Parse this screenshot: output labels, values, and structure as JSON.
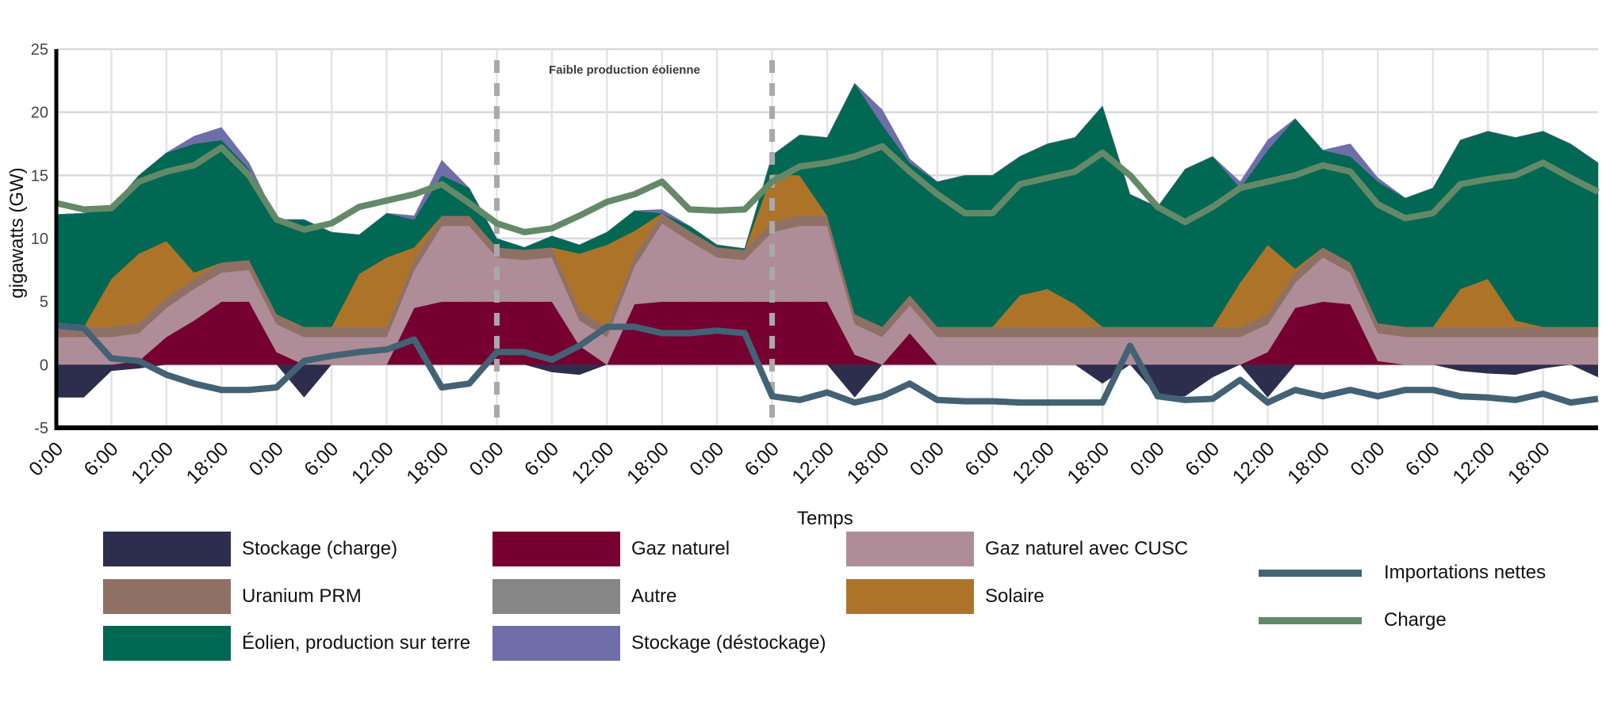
{
  "chart_data": {
    "type": "area",
    "title": "",
    "xlabel": "Temps",
    "ylabel": "gigawatts (GW)",
    "ylim": [
      -5,
      25
    ],
    "yticks": [
      -5,
      0,
      5,
      10,
      15,
      20,
      25
    ],
    "x_hours_step": 3,
    "x_range_hours": [
      0,
      168
    ],
    "xtick_labels": [
      "0:00",
      "6:00",
      "12:00",
      "18:00",
      "0:00",
      "6:00",
      "12:00",
      "18:00",
      "0:00",
      "6:00",
      "12:00",
      "18:00",
      "0:00",
      "6:00",
      "12:00",
      "18:00",
      "0:00",
      "6:00",
      "12:00",
      "18:00",
      "0:00",
      "6:00",
      "12:00",
      "18:00",
      "0:00",
      "6:00",
      "12:00",
      "18:00"
    ],
    "grid": true,
    "legend_position": "bottom",
    "annotation": {
      "text": "Faible production éolienne",
      "span_hours": [
        48,
        78
      ]
    },
    "stacked_series": [
      {
        "name": "Gaz naturel",
        "color": "#760030",
        "values": [
          0,
          0,
          0,
          0.3,
          2.2,
          3.5,
          5,
          5,
          1.0,
          0,
          0,
          0,
          0,
          4.5,
          5,
          5,
          5,
          5,
          5,
          1.5,
          0,
          4.8,
          5,
          5,
          5,
          5,
          5,
          5,
          5,
          0.8,
          0,
          2.5,
          0,
          0,
          0,
          0,
          0,
          0,
          0,
          0,
          0,
          0,
          0,
          0,
          1.0,
          4.5,
          5,
          4.8,
          0.3,
          0,
          0,
          0,
          0,
          0,
          0,
          0,
          0
        ]
      },
      {
        "name": "Gaz naturel avec CUSC",
        "color": "#ae8d98",
        "values": [
          2.2,
          2.2,
          2.2,
          2.2,
          2.3,
          2.5,
          2.3,
          2.5,
          2.2,
          2.2,
          2.2,
          2.2,
          2.2,
          3.0,
          6.0,
          6.0,
          3.5,
          3.3,
          3.5,
          2.0,
          2.2,
          3.0,
          6.2,
          4.8,
          3.5,
          3.3,
          5.5,
          6.0,
          6.0,
          2.4,
          2.2,
          2.2,
          2.2,
          2.2,
          2.2,
          2.2,
          2.2,
          2.2,
          2.2,
          2.2,
          2.2,
          2.2,
          2.2,
          2.2,
          2.2,
          2.0,
          3.5,
          2.5,
          2.2,
          2.2,
          2.2,
          2.2,
          2.2,
          2.2,
          2.2,
          2.2,
          2.2
        ]
      },
      {
        "name": "Uranium PRM",
        "color": "#8f7065",
        "values": [
          0.8,
          0.8,
          0.8,
          0.8,
          0.8,
          0.8,
          0.8,
          0.8,
          0.8,
          0.8,
          0.8,
          0.8,
          0.8,
          0.8,
          0.8,
          0.8,
          0.8,
          0.8,
          0.8,
          0.8,
          0.8,
          0.8,
          0.8,
          0.8,
          0.8,
          0.8,
          0.8,
          0.8,
          0.8,
          0.8,
          0.8,
          0.8,
          0.8,
          0.8,
          0.8,
          0.8,
          0.8,
          0.8,
          0.8,
          0.8,
          0.8,
          0.8,
          0.8,
          0.8,
          0.8,
          0.8,
          0.8,
          0.8,
          0.8,
          0.8,
          0.8,
          0.8,
          0.8,
          0.8,
          0.8,
          0.8,
          0.8
        ]
      },
      {
        "name": "Autre",
        "color": "#878787",
        "values": [
          0,
          0,
          0,
          0,
          0,
          0,
          0,
          0,
          0,
          0,
          0,
          0,
          0,
          0,
          0,
          0,
          0,
          0,
          0,
          0,
          0,
          0,
          0,
          0,
          0,
          0,
          0,
          0,
          0,
          0,
          0,
          0,
          0,
          0,
          0,
          0,
          0,
          0,
          0,
          0,
          0,
          0,
          0,
          0,
          0,
          0,
          0,
          0,
          0,
          0,
          0,
          0,
          0,
          0,
          0,
          0,
          0
        ]
      },
      {
        "name": "Solaire",
        "color": "#ad7429",
        "values": [
          0,
          0,
          3.8,
          5.5,
          4.5,
          0.5,
          0,
          0,
          0,
          0,
          0,
          4.2,
          5.5,
          1.0,
          0,
          0,
          0,
          0,
          0,
          4.5,
          6.5,
          2.0,
          0,
          0,
          0,
          0,
          3.8,
          3.2,
          0,
          0,
          0,
          0,
          0,
          0,
          0,
          2.5,
          3.0,
          1.8,
          0,
          0,
          0,
          0,
          0,
          3.5,
          5.5,
          0.3,
          0,
          0,
          0,
          0,
          0,
          3.0,
          3.8,
          0.5,
          0,
          0,
          0
        ]
      },
      {
        "name": "Éolien, production sur terre",
        "color": "#006853",
        "values": [
          8.9,
          9.0,
          5.7,
          6.2,
          7.0,
          10.2,
          9.7,
          7.2,
          7.5,
          8.5,
          7.5,
          3.1,
          3.5,
          2.2,
          3.2,
          2.2,
          0.7,
          0.2,
          0.9,
          0.7,
          1.0,
          1.6,
          0,
          0.4,
          0.2,
          0.1,
          1.5,
          3.2,
          6.2,
          18.3,
          16,
          10.5,
          11.5,
          12,
          12,
          11,
          11.5,
          13.2,
          17.5,
          10.5,
          9.5,
          12.5,
          13.5,
          7.5,
          7.5,
          11.9,
          7.7,
          8.4,
          11.2,
          10.2,
          11,
          11.8,
          11.7,
          14.5,
          15.5,
          14.5,
          13
        ]
      },
      {
        "name": "Stockage (déstockage)",
        "color": "#6f6ea8",
        "values": [
          0,
          0,
          0,
          0,
          0,
          0.6,
          1.0,
          0.5,
          0,
          0,
          0,
          0,
          0,
          0.3,
          1.2,
          0,
          0,
          0,
          0,
          0,
          0,
          0,
          0.3,
          0,
          0,
          0,
          0,
          0,
          0,
          0,
          1.2,
          0.3,
          0,
          0,
          0,
          0,
          0,
          0,
          0,
          0,
          0,
          0,
          0,
          0.5,
          0.8,
          0,
          0,
          1.0,
          0.3,
          0,
          0,
          0,
          0,
          0,
          0,
          0,
          0
        ]
      }
    ],
    "negative_series": [
      {
        "name": "Stockage (charge)",
        "color": "#2d2d4d",
        "values": [
          -2.6,
          -2.6,
          -0.5,
          -0.3,
          0,
          0,
          0,
          0,
          0,
          -2.6,
          0,
          0,
          0,
          0,
          0,
          0,
          0,
          0,
          -0.6,
          -0.8,
          0,
          0,
          0,
          0,
          0,
          0,
          0,
          0,
          0,
          -2.6,
          0,
          0,
          0,
          0,
          0,
          0,
          0,
          0,
          -1.5,
          0,
          -2.5,
          -2.5,
          -1.0,
          0,
          -2.6,
          0,
          0,
          0,
          0,
          0,
          0,
          -0.5,
          -0.7,
          -0.8,
          -0.3,
          0,
          -1.0
        ]
      }
    ],
    "line_series": [
      {
        "name": "Importations nettes",
        "color": "#436275",
        "values": [
          3.1,
          2.9,
          0.5,
          0.3,
          -0.8,
          -1.5,
          -2,
          -2,
          -1.8,
          0.3,
          0.7,
          1.0,
          1.2,
          2.0,
          -1.8,
          -1.5,
          1.0,
          1.0,
          0.4,
          1.5,
          3.0,
          3.0,
          2.5,
          2.5,
          2.7,
          2.5,
          -2.5,
          -2.8,
          -2.2,
          -3.0,
          -2.5,
          -1.5,
          -2.8,
          -2.9,
          -2.9,
          -3.0,
          -3.0,
          -3.0,
          -3.0,
          1.5,
          -2.5,
          -2.8,
          -2.7,
          -1.2,
          -3.0,
          -2.0,
          -2.5,
          -2.0,
          -2.5,
          -2.0,
          -2.0,
          -2.5,
          -2.6,
          -2.8,
          -2.3,
          -3.0,
          -2.7
        ]
      },
      {
        "name": "Charge",
        "color": "#648968",
        "values": [
          12.8,
          12.3,
          12.4,
          14.5,
          15.3,
          15.8,
          17.2,
          15.0,
          11.5,
          10.7,
          11.2,
          12.5,
          13.0,
          13.5,
          14.3,
          12.8,
          11.2,
          10.5,
          10.8,
          11.8,
          12.9,
          13.5,
          14.5,
          12.3,
          12.2,
          12.3,
          14.5,
          15.7,
          16.0,
          16.5,
          17.3,
          15.3,
          13.5,
          12.0,
          12.0,
          14.3,
          14.8,
          15.3,
          16.8,
          15.0,
          12.5,
          11.3,
          12.5,
          14.0,
          14.5,
          15.0,
          15.8,
          15.3,
          12.7,
          11.6,
          12.0,
          14.3,
          14.7,
          15.0,
          16.0,
          14.8,
          13.7
        ]
      }
    ]
  },
  "legend": {
    "items": [
      {
        "label": "Stockage (charge)",
        "color": "#2d2d4d",
        "kind": "area"
      },
      {
        "label": "Gaz naturel",
        "color": "#760030",
        "kind": "area"
      },
      {
        "label": "Gaz naturel avec CUSC",
        "color": "#ae8d98",
        "kind": "area"
      },
      {
        "label": "Uranium PRM",
        "color": "#8f7065",
        "kind": "area"
      },
      {
        "label": "Autre",
        "color": "#878787",
        "kind": "area"
      },
      {
        "label": "Solaire",
        "color": "#ad7429",
        "kind": "area"
      },
      {
        "label": "Éolien, production sur terre",
        "color": "#006853",
        "kind": "area"
      },
      {
        "label": "Stockage (déstockage)",
        "color": "#6f6ea8",
        "kind": "area"
      },
      {
        "label": "Importations nettes",
        "color": "#436275",
        "kind": "line"
      },
      {
        "label": "Charge",
        "color": "#648968",
        "kind": "line"
      }
    ]
  }
}
